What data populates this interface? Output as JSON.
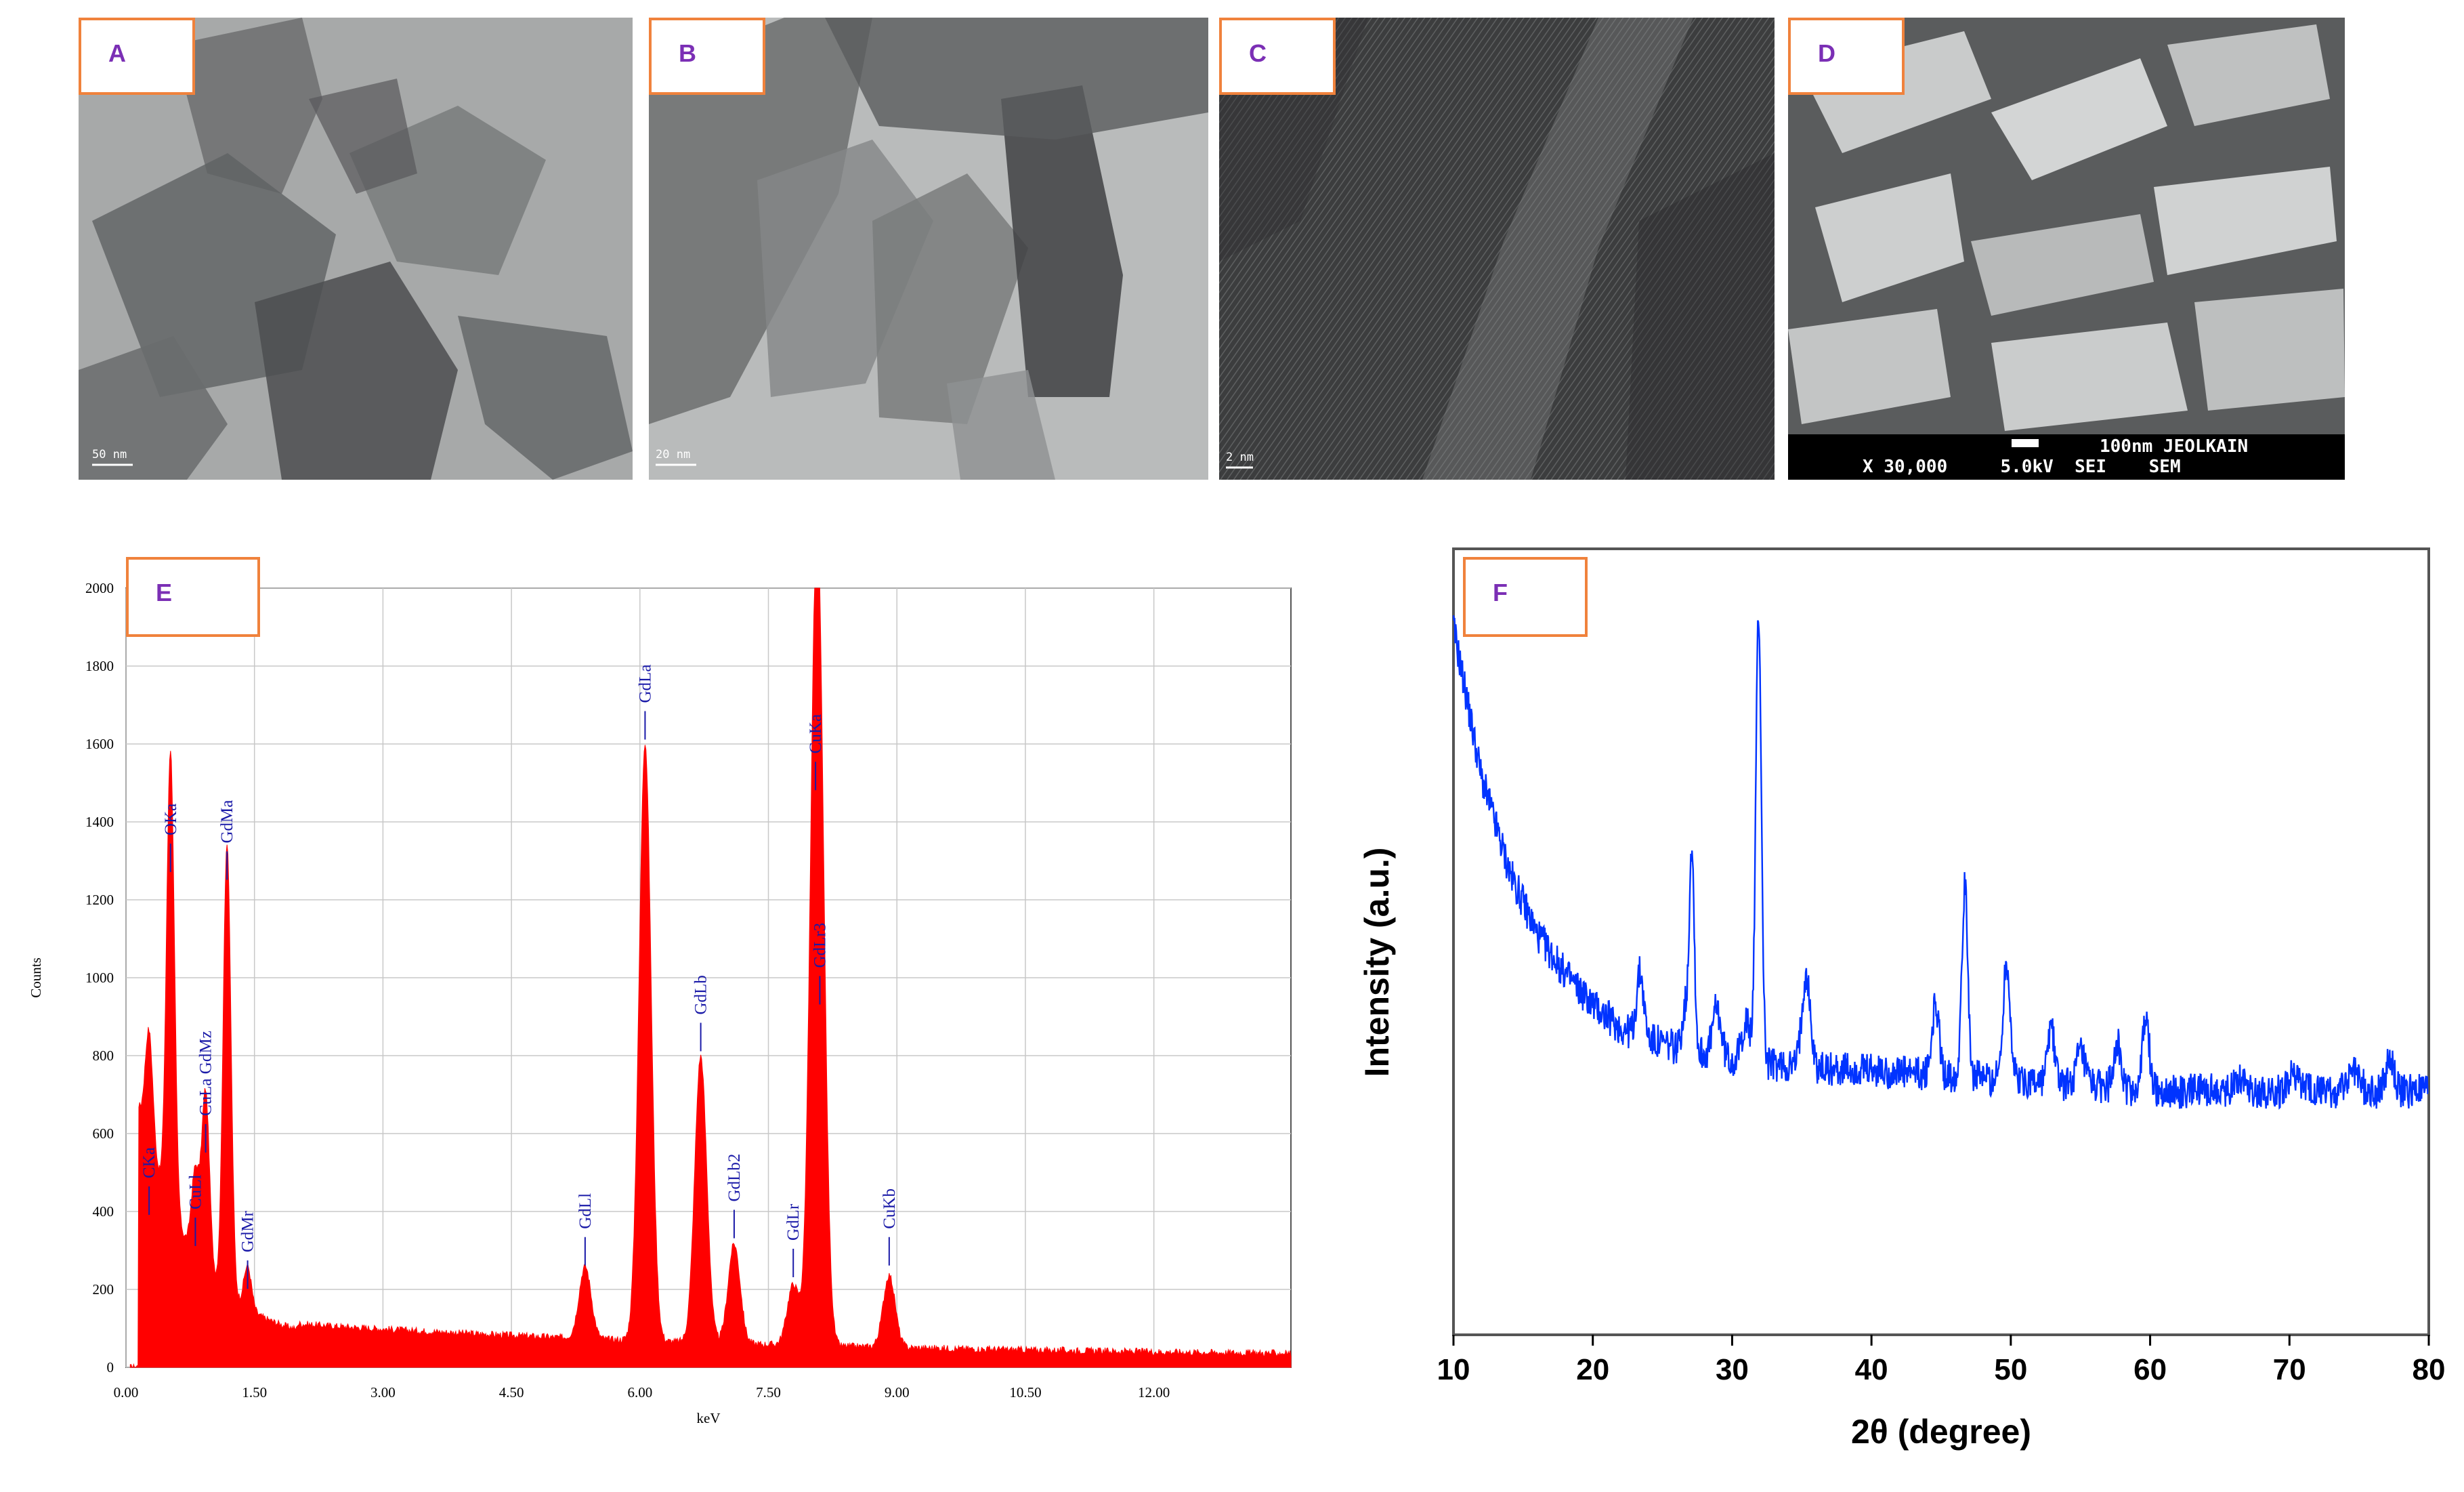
{
  "panels": {
    "A": {
      "label": "A",
      "scale": "50 nm"
    },
    "B": {
      "label": "B",
      "scale": "20 nm"
    },
    "C": {
      "label": "C",
      "scale": "2 nm"
    },
    "D": {
      "label": "D",
      "sem_line1": "100nm JEOLKAIN",
      "sem_line2": "X 30,000     5.0kV  SEI    SEM"
    },
    "E": {
      "label": "E"
    },
    "F": {
      "label": "F"
    }
  },
  "colors": {
    "eds_fill": "#ff0000",
    "xrd_line": "#0033ff",
    "peak_label": "#1a1aa8",
    "tag_border": "#f0823c",
    "tag_text": "#7b2fb5"
  },
  "chart_data": [
    {
      "type": "area",
      "panel": "E",
      "title": "",
      "xlabel": "keV",
      "ylabel": "Counts",
      "xlim": [
        0,
        13.6
      ],
      "ylim": [
        0,
        2000
      ],
      "grid": true,
      "x_ticks": [
        0,
        1.5,
        3.0,
        4.5,
        6.0,
        7.5,
        9.0,
        10.5,
        12.0
      ],
      "x_tick_labels": [
        "0.00",
        "1.50",
        "3.00",
        "4.50",
        "6.00",
        "7.50",
        "9.00",
        "10.50",
        "12.00"
      ],
      "y_ticks": [
        0,
        200,
        400,
        600,
        800,
        1000,
        1200,
        1400,
        1600,
        1800,
        2000
      ],
      "y_tick_labels": [
        "0",
        "200",
        "400",
        "600",
        "800",
        "1000",
        "1200",
        "1400",
        "1600",
        "1800",
        "2000"
      ],
      "peaks": [
        {
          "label": "CKa",
          "x": 0.27,
          "y": 360
        },
        {
          "label": "OKa",
          "x": 0.52,
          "y": 1240
        },
        {
          "label": "CuLl",
          "x": 0.81,
          "y": 280
        },
        {
          "label": "CuLa GdMz",
          "x": 0.93,
          "y": 520
        },
        {
          "label": "GdMa",
          "x": 1.18,
          "y": 1220
        },
        {
          "label": "GdMr",
          "x": 1.42,
          "y": 170
        },
        {
          "label": "GdLl",
          "x": 5.36,
          "y": 230
        },
        {
          "label": "GdLa",
          "x": 6.06,
          "y": 1580
        },
        {
          "label": "GdLb",
          "x": 6.71,
          "y": 780
        },
        {
          "label": "GdLb2",
          "x": 7.1,
          "y": 300
        },
        {
          "label": "GdLr",
          "x": 7.79,
          "y": 200
        },
        {
          "label": "CuKa",
          "x": 8.05,
          "y": 1450
        },
        {
          "label": "GdLr3",
          "x": 8.1,
          "y": 900
        },
        {
          "label": "CuKb",
          "x": 8.91,
          "y": 230
        }
      ]
    },
    {
      "type": "line",
      "panel": "F",
      "title": "",
      "xlabel": "2θ (degree)",
      "ylabel": "Intensity (a.u.)",
      "xlim": [
        10,
        80
      ],
      "x_ticks": [
        10,
        20,
        30,
        40,
        50,
        60,
        70,
        80
      ],
      "y_ticks": [],
      "ylim": [
        0,
        100
      ],
      "grid": false,
      "baseline_points": [
        [
          10,
          90
        ],
        [
          12,
          71
        ],
        [
          14,
          59
        ],
        [
          16,
          51
        ],
        [
          18,
          46
        ],
        [
          20,
          42
        ],
        [
          22,
          39
        ],
        [
          25,
          37
        ],
        [
          30,
          35
        ],
        [
          35,
          34
        ],
        [
          40,
          33.5
        ],
        [
          50,
          32.5
        ],
        [
          60,
          31
        ],
        [
          70,
          31
        ],
        [
          80,
          31
        ]
      ],
      "peaks": [
        {
          "x": 23.4,
          "height": 8,
          "width": 0.25
        },
        {
          "x": 26.6,
          "height": 5,
          "width": 0.2
        },
        {
          "x": 27.1,
          "height": 26,
          "width": 0.18
        },
        {
          "x": 28.9,
          "height": 6,
          "width": 0.3
        },
        {
          "x": 31.0,
          "height": 5,
          "width": 0.3
        },
        {
          "x": 31.9,
          "height": 57,
          "width": 0.2
        },
        {
          "x": 35.3,
          "height": 12,
          "width": 0.3
        },
        {
          "x": 44.6,
          "height": 9,
          "width": 0.25
        },
        {
          "x": 46.7,
          "height": 24,
          "width": 0.22
        },
        {
          "x": 49.7,
          "height": 15,
          "width": 0.25
        },
        {
          "x": 52.9,
          "height": 7,
          "width": 0.25
        },
        {
          "x": 55.0,
          "height": 4,
          "width": 0.3
        },
        {
          "x": 57.6,
          "height": 6,
          "width": 0.25
        },
        {
          "x": 59.7,
          "height": 9,
          "width": 0.25
        },
        {
          "x": 66.5,
          "height": 2,
          "width": 0.4
        },
        {
          "x": 70.3,
          "height": 2,
          "width": 0.4
        },
        {
          "x": 74.6,
          "height": 3,
          "width": 0.4
        },
        {
          "x": 77.2,
          "height": 4,
          "width": 0.3
        }
      ]
    }
  ]
}
